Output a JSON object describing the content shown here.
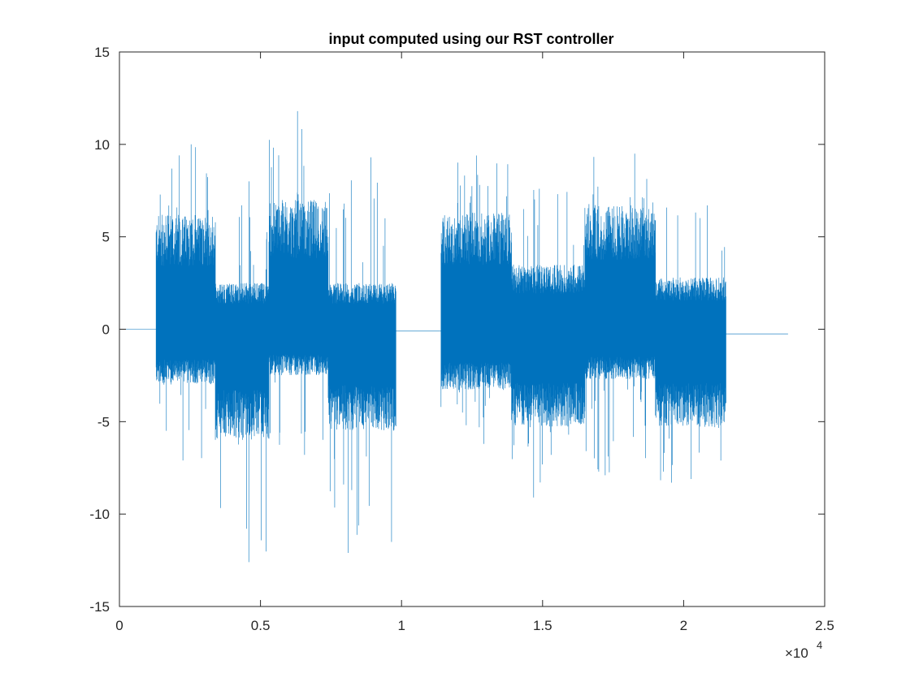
{
  "chart_data": {
    "type": "line",
    "title": "input computed using our RST controller",
    "xlabel": "",
    "ylabel": "",
    "xlim": [
      0,
      25000
    ],
    "ylim": [
      -15,
      15
    ],
    "x_ticks": [
      0,
      5000,
      10000,
      15000,
      20000,
      25000
    ],
    "x_tick_labels": [
      "0",
      "0.5",
      "1",
      "1.5",
      "2",
      "2.5"
    ],
    "y_ticks": [
      -15,
      -10,
      -5,
      0,
      5,
      10,
      15
    ],
    "y_tick_labels": [
      "-15",
      "-10",
      "-5",
      "0",
      "5",
      "10",
      "15"
    ],
    "x_exponent_label": "×10",
    "x_exponent_power": "4",
    "grid": false,
    "box": true,
    "series": [
      {
        "color": "#0072BD",
        "x_end": 23700,
        "segments": [
          {
            "x": [
              0,
              1300
            ],
            "level": 0.0,
            "kind": "flat"
          },
          {
            "x": [
              1300,
              3400
            ],
            "upper": 6.2,
            "lower": -3.0,
            "max": 10.0,
            "min": -7.1,
            "kind": "noise"
          },
          {
            "x": [
              3400,
              5300
            ],
            "upper": 2.5,
            "lower": -6.0,
            "max": 8.0,
            "min": -12.6,
            "kind": "noise"
          },
          {
            "x": [
              5300,
              7400
            ],
            "upper": 7.0,
            "lower": -2.5,
            "max": 11.8,
            "min": -6.8,
            "kind": "noise"
          },
          {
            "x": [
              7400,
              9800
            ],
            "upper": 2.5,
            "lower": -5.5,
            "max": 9.3,
            "min": -12.1,
            "kind": "noise"
          },
          {
            "x": [
              9800,
              11400
            ],
            "level": -0.1,
            "kind": "flat"
          },
          {
            "x": [
              11400,
              13900
            ],
            "upper": 6.3,
            "lower": -3.3,
            "max": 9.4,
            "min": -6.2,
            "kind": "noise"
          },
          {
            "x": [
              13900,
              16500
            ],
            "upper": 3.5,
            "lower": -5.3,
            "max": 7.6,
            "min": -9.1,
            "kind": "noise"
          },
          {
            "x": [
              16500,
              19000
            ],
            "upper": 6.8,
            "lower": -2.7,
            "max": 9.5,
            "min": -7.9,
            "kind": "noise"
          },
          {
            "x": [
              19000,
              21500
            ],
            "upper": 2.8,
            "lower": -5.3,
            "max": 6.7,
            "min": -8.3,
            "kind": "noise"
          },
          {
            "x": [
              21500,
              23700
            ],
            "level": -0.25,
            "kind": "flat"
          }
        ]
      }
    ]
  }
}
